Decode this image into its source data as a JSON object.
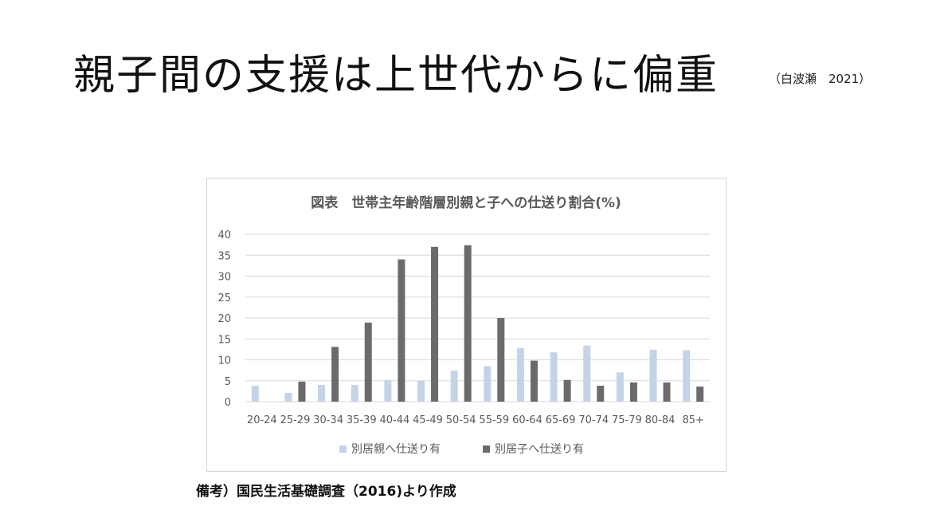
{
  "slide": {
    "title": "親子間の支援は上世代からに偏重",
    "citation": "（白波瀬　2021）",
    "source_note": "備考）国民生活基礎調査（2016)より作成"
  },
  "colors": {
    "series1": "#c5d3e8",
    "series2": "#6b6b6b",
    "grid": "#d9d9d9",
    "axis_text": "#595959"
  },
  "chart_data": {
    "type": "bar",
    "title": "図表　世帯主年齢階層別親と子への仕送り割合(%)",
    "categories": [
      "20-24",
      "25-29",
      "30-34",
      "35-39",
      "40-44",
      "45-49",
      "50-54",
      "55-59",
      "60-64",
      "65-69",
      "70-74",
      "75-79",
      "80-84",
      "85+"
    ],
    "series": [
      {
        "name": "別居親へ仕送り有",
        "values": [
          3.8,
          2.1,
          4.0,
          4.0,
          5.2,
          5.0,
          7.4,
          8.5,
          12.8,
          11.8,
          13.4,
          7.0,
          12.4,
          12.3
        ]
      },
      {
        "name": "別居子へ仕送り有",
        "values": [
          0,
          4.8,
          13.1,
          18.9,
          34.0,
          37.0,
          37.4,
          20.0,
          9.8,
          5.2,
          3.8,
          4.6,
          4.6,
          3.6
        ]
      }
    ],
    "yticks": [
      0,
      5,
      10,
      15,
      20,
      25,
      30,
      35,
      40
    ],
    "ylim": [
      0,
      40
    ],
    "grid": true,
    "legend_position": "bottom"
  }
}
